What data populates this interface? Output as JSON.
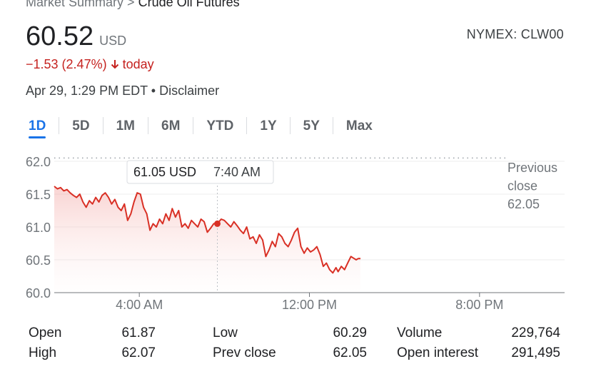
{
  "breadcrumb": {
    "root": "Market Summary",
    "separator": ">",
    "current": "Crude Oil Futures"
  },
  "quote": {
    "price": "60.52",
    "currency": "USD",
    "ticker": "NYMEX: CLW00",
    "change": "−1.53 (2.47%)",
    "change_suffix": "today",
    "change_direction": "down",
    "timestamp": "Apr 29, 1:29 PM EDT",
    "dot": "•",
    "disclaimer": "Disclaimer"
  },
  "colors": {
    "up": "#137333",
    "down": "#d93025",
    "accent": "#1a73e8"
  },
  "tabs": [
    {
      "label": "1D",
      "active": true
    },
    {
      "label": "5D",
      "active": false
    },
    {
      "label": "1M",
      "active": false
    },
    {
      "label": "6M",
      "active": false
    },
    {
      "label": "YTD",
      "active": false
    },
    {
      "label": "1Y",
      "active": false
    },
    {
      "label": "5Y",
      "active": false
    },
    {
      "label": "Max",
      "active": false
    }
  ],
  "chart_data": {
    "type": "area",
    "title": "",
    "xlabel": "",
    "ylabel": "",
    "x_unit": "hours",
    "xlim": [
      0.0,
      24.0
    ],
    "ylim": [
      60.0,
      62.0
    ],
    "y_ticks": [
      "62.0",
      "61.5",
      "61.0",
      "60.5",
      "60.0"
    ],
    "y_tick_values": [
      62.0,
      61.5,
      61.0,
      60.5,
      60.0
    ],
    "x_ticks": [
      "4:00 AM",
      "12:00 PM",
      "8:00 PM"
    ],
    "x_tick_values": [
      4.0,
      12.0,
      20.0
    ],
    "previous_close": {
      "label_line1": "Previous",
      "label_line2": "close",
      "value": 62.05,
      "value_label": "62.05"
    },
    "tooltip": {
      "value_label": "61.05 USD",
      "time_label": "7:40 AM",
      "x": 7.67,
      "y": 61.05
    },
    "series": [
      {
        "x": [
          0.0,
          0.15,
          0.3,
          0.45,
          0.6,
          0.75,
          0.9,
          1.05,
          1.2,
          1.35,
          1.5,
          1.65,
          1.8,
          1.95,
          2.1,
          2.25,
          2.4,
          2.55,
          2.7,
          2.85,
          3.0,
          3.15,
          3.3,
          3.45,
          3.6,
          3.75,
          3.9,
          4.05,
          4.2,
          4.35,
          4.5,
          4.65,
          4.8,
          4.95,
          5.1,
          5.25,
          5.4,
          5.55,
          5.7,
          5.85,
          6.0,
          6.15,
          6.3,
          6.45,
          6.6,
          6.75,
          6.9,
          7.05,
          7.2,
          7.35,
          7.5,
          7.67,
          7.85,
          8.0,
          8.15,
          8.3,
          8.45,
          8.6,
          8.75,
          8.9,
          9.05,
          9.2,
          9.35,
          9.5,
          9.65,
          9.8,
          9.95,
          10.1,
          10.25,
          10.4,
          10.55,
          10.7,
          10.85,
          11.0,
          11.15,
          11.3,
          11.45,
          11.6,
          11.75,
          11.9,
          12.05,
          12.2,
          12.35,
          12.5,
          12.65,
          12.8,
          12.95,
          13.1,
          13.25,
          13.35,
          13.5,
          13.65,
          13.8,
          13.95,
          14.1,
          14.2,
          14.3,
          14.4
        ],
        "y": [
          61.62,
          61.58,
          61.6,
          61.55,
          61.57,
          61.52,
          61.48,
          61.45,
          61.5,
          61.38,
          61.3,
          61.4,
          61.35,
          61.45,
          61.38,
          61.48,
          61.52,
          61.45,
          61.35,
          61.42,
          61.3,
          61.25,
          61.35,
          61.1,
          61.2,
          61.38,
          61.52,
          61.5,
          61.3,
          61.2,
          60.95,
          61.05,
          61.0,
          61.12,
          61.05,
          61.2,
          61.1,
          61.28,
          61.15,
          61.25,
          61.0,
          61.05,
          60.98,
          61.1,
          61.05,
          61.0,
          61.12,
          61.08,
          60.92,
          60.98,
          61.05,
          61.05,
          61.12,
          61.1,
          61.05,
          61.0,
          61.08,
          61.02,
          60.95,
          60.9,
          61.0,
          60.82,
          60.85,
          60.75,
          60.88,
          60.8,
          60.55,
          60.65,
          60.78,
          60.7,
          60.9,
          60.85,
          60.75,
          60.7,
          60.8,
          60.92,
          60.98,
          60.7,
          60.6,
          60.68,
          60.62,
          60.65,
          60.7,
          60.58,
          60.4,
          60.45,
          60.35,
          60.3,
          60.38,
          60.32,
          60.4,
          60.35,
          60.45,
          60.55,
          60.52,
          60.5,
          60.52,
          60.52
        ]
      }
    ],
    "grid": true
  },
  "stats": [
    {
      "label": "Open",
      "value": "61.87"
    },
    {
      "label": "High",
      "value": "62.07"
    },
    {
      "label": "Low",
      "value": "60.29"
    },
    {
      "label": "Prev close",
      "value": "62.05"
    },
    {
      "label": "Volume",
      "value": "229,764"
    },
    {
      "label": "Open interest",
      "value": "291,495"
    }
  ]
}
